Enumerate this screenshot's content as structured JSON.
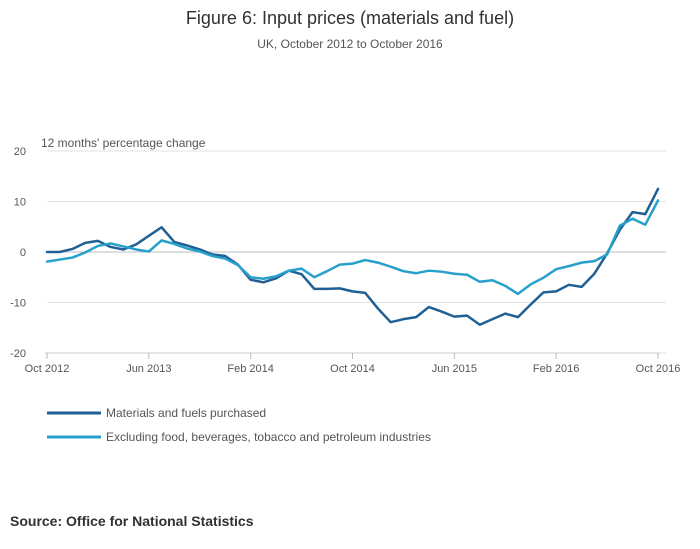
{
  "chart_data": {
    "type": "line",
    "title": "Figure 6: Input prices (materials and fuel)",
    "subtitle": "UK, October 2012 to October 2016",
    "ylabel": "12 months' percentage change",
    "ylim": [
      -20,
      20
    ],
    "yticks": [
      20,
      10,
      0,
      -10,
      -20
    ],
    "x_tick_labels": [
      "Oct 2012",
      "Jun 2013",
      "Feb 2014",
      "Oct 2014",
      "Jun 2015",
      "Feb 2016",
      "Oct 2016"
    ],
    "x_tick_months": [
      "2012-10",
      "2013-06",
      "2014-02",
      "2014-10",
      "2015-06",
      "2016-02",
      "2016-10"
    ],
    "x_start": "2012-10",
    "x_end": "2016-10",
    "grid": true,
    "legend_position": "bottom-left",
    "series": [
      {
        "name": "Materials and fuels purchased",
        "color": "#206095",
        "values": [
          0.0,
          0.0,
          0.6,
          1.8,
          2.2,
          1.0,
          0.5,
          1.5,
          3.2,
          4.9,
          2.0,
          1.3,
          0.5,
          -0.5,
          -0.8,
          -2.5,
          -5.5,
          -6.0,
          -5.2,
          -3.7,
          -4.4,
          -7.3,
          -7.3,
          -7.2,
          -7.8,
          -8.1,
          -11.2,
          -13.9,
          -13.3,
          -12.9,
          -10.9,
          -11.8,
          -12.8,
          -12.6,
          -14.4,
          -13.3,
          -12.2,
          -12.9,
          -10.4,
          -8.0,
          -7.8,
          -6.5,
          -6.9,
          -4.3,
          -0.3,
          4.4,
          7.9,
          7.5,
          12.5
        ]
      },
      {
        "name": "Excluding food, beverages, tobacco and petroleum industries",
        "color": "#27a0cc",
        "values": [
          -1.9,
          -1.5,
          -1.1,
          -0.1,
          1.2,
          1.7,
          1.1,
          0.5,
          0.1,
          2.3,
          1.6,
          0.7,
          0.1,
          -0.8,
          -1.3,
          -2.6,
          -5.0,
          -5.3,
          -4.8,
          -3.7,
          -3.3,
          -5.0,
          -3.8,
          -2.5,
          -2.3,
          -1.6,
          -2.1,
          -2.9,
          -3.8,
          -4.2,
          -3.7,
          -3.9,
          -4.3,
          -4.5,
          -5.9,
          -5.6,
          -6.7,
          -8.3,
          -6.4,
          -5.1,
          -3.4,
          -2.8,
          -2.1,
          -1.8,
          -0.5,
          5.2,
          6.6,
          5.4,
          10.2
        ]
      }
    ]
  },
  "source": "Source: Office for National Statistics"
}
